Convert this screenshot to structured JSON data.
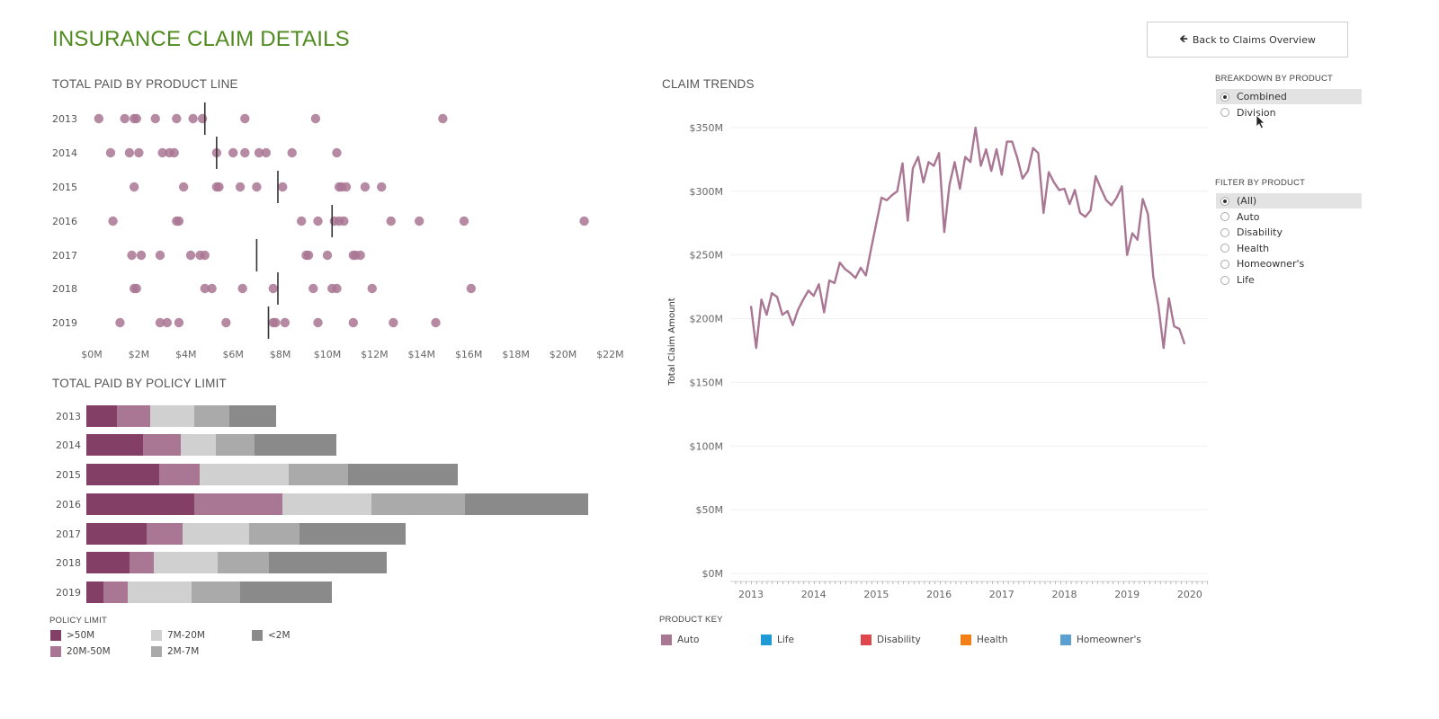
{
  "header": {
    "title": "INSURANCE CLAIM DETAILS",
    "back_button_label": "Back to Claims Overview",
    "back_icon": "arrow-left-icon"
  },
  "sections": {
    "product_line_title": "TOTAL PAID BY PRODUCT LINE",
    "policy_limit_title": "TOTAL PAID BY POLICY LIMIT",
    "claim_trends_title": "CLAIM TRENDS"
  },
  "breakdown": {
    "heading": "BREAKDOWN BY PRODUCT",
    "options": [
      "Combined",
      "Division"
    ],
    "selected": "Combined"
  },
  "filter": {
    "heading": "FILTER BY PRODUCT",
    "options": [
      "(All)",
      "Auto",
      "Disability",
      "Health",
      "Homeowner's",
      "Life"
    ],
    "selected": "(All)"
  },
  "policy_legend": {
    "heading": "POLICY LIMIT",
    "items": [
      {
        "label": ">50M",
        "color": "#843f66"
      },
      {
        "label": "20M-50M",
        "color": "#a97693"
      },
      {
        "label": "7M-20M",
        "color": "#d0d0d0"
      },
      {
        "label": "2M-7M",
        "color": "#aaaaaa"
      },
      {
        "label": "<2M",
        "color": "#8a8a8a"
      }
    ]
  },
  "product_key": {
    "heading": "PRODUCT KEY",
    "items": [
      {
        "label": "Auto",
        "color": "#a97693"
      },
      {
        "label": "Life",
        "color": "#1f9ad6"
      },
      {
        "label": "Disability",
        "color": "#e0474c"
      },
      {
        "label": "Health",
        "color": "#f47f17"
      },
      {
        "label": "Homeowner's",
        "color": "#5aa0d0"
      }
    ]
  },
  "chart_data": [
    {
      "type": "scatter",
      "title": "TOTAL PAID BY PRODUCT LINE",
      "categories": [
        "2013",
        "2014",
        "2015",
        "2016",
        "2017",
        "2018",
        "2019"
      ],
      "x_ticks": [
        "$0M",
        "$2M",
        "$4M",
        "$6M",
        "$8M",
        "$10M",
        "$12M",
        "$14M",
        "$16M",
        "$18M",
        "$20M",
        "$22M"
      ],
      "xlim": [
        0,
        22
      ],
      "color": "#a97693",
      "points_by_year": [
        [
          0.3,
          1.4,
          1.8,
          1.9,
          2.7,
          3.6,
          4.3,
          4.7,
          6.5,
          9.5,
          14.9
        ],
        [
          0.8,
          1.6,
          2.0,
          3.0,
          3.3,
          3.5,
          5.3,
          6.0,
          6.5,
          7.1,
          7.4,
          8.5,
          10.4
        ],
        [
          1.8,
          3.9,
          5.3,
          5.4,
          6.3,
          7.0,
          8.1,
          10.5,
          10.6,
          10.8,
          11.6,
          12.3
        ],
        [
          0.9,
          3.6,
          3.7,
          8.9,
          9.6,
          10.3,
          10.5,
          10.7,
          12.7,
          13.9,
          15.8,
          20.9
        ],
        [
          1.7,
          2.1,
          2.9,
          4.2,
          4.6,
          4.8,
          9.1,
          9.2,
          10.0,
          11.1,
          11.2,
          11.4
        ],
        [
          1.8,
          1.9,
          4.8,
          5.1,
          6.4,
          7.7,
          9.4,
          10.2,
          10.4,
          11.9,
          16.1
        ],
        [
          1.2,
          2.9,
          3.2,
          3.7,
          5.7,
          7.7,
          7.8,
          8.2,
          9.6,
          11.1,
          12.8,
          14.6
        ]
      ],
      "median_by_year": [
        4.8,
        5.3,
        7.9,
        10.2,
        7.0,
        7.9,
        7.5
      ]
    },
    {
      "type": "bar",
      "stacked": true,
      "orientation": "horizontal",
      "title": "TOTAL PAID BY POLICY LIMIT",
      "categories": [
        "2013",
        "2014",
        "2015",
        "2016",
        "2017",
        "2018",
        "2019"
      ],
      "series": [
        {
          "name": ">50M",
          "values": [
            34,
            63,
            81,
            120,
            67,
            48,
            19
          ]
        },
        {
          "name": "20M-50M",
          "values": [
            37,
            42,
            45,
            98,
            40,
            27,
            27
          ]
        },
        {
          "name": "7M-20M",
          "values": [
            49,
            39,
            99,
            99,
            74,
            71,
            71
          ]
        },
        {
          "name": "2M-7M",
          "values": [
            39,
            43,
            66,
            104,
            56,
            57,
            54
          ]
        },
        {
          "name": "<2M",
          "values": [
            52,
            91,
            122,
            137,
            118,
            131,
            102
          ]
        }
      ],
      "xlim": [
        0,
        560
      ]
    },
    {
      "type": "line",
      "title": "CLAIM TRENDS",
      "ylabel": "Total Claim Amount",
      "y_ticks": [
        "$0M",
        "$50M",
        "$100M",
        "$150M",
        "$200M",
        "$250M",
        "$300M",
        "$350M"
      ],
      "ylim": [
        0,
        350
      ],
      "x_ticks": [
        "2013",
        "2014",
        "2015",
        "2016",
        "2017",
        "2018",
        "2019",
        "2020"
      ],
      "xlim": [
        2012.75,
        2020.3
      ],
      "color": "#a97693",
      "x": [
        2013.0,
        2013.083,
        2013.167,
        2013.25,
        2013.333,
        2013.417,
        2013.5,
        2013.583,
        2013.667,
        2013.75,
        2013.833,
        2013.917,
        2014.0,
        2014.083,
        2014.167,
        2014.25,
        2014.333,
        2014.417,
        2014.5,
        2014.583,
        2014.667,
        2014.75,
        2014.833,
        2014.917,
        2015.0,
        2015.083,
        2015.167,
        2015.25,
        2015.333,
        2015.417,
        2015.5,
        2015.583,
        2015.667,
        2015.75,
        2015.833,
        2015.917,
        2016.0,
        2016.083,
        2016.167,
        2016.25,
        2016.333,
        2016.417,
        2016.5,
        2016.583,
        2016.667,
        2016.75,
        2016.833,
        2016.917,
        2017.0,
        2017.083,
        2017.167,
        2017.25,
        2017.333,
        2017.417,
        2017.5,
        2017.583,
        2017.667,
        2017.75,
        2017.833,
        2017.917,
        2018.0,
        2018.083,
        2018.167,
        2018.25,
        2018.333,
        2018.417,
        2018.5,
        2018.583,
        2018.667,
        2018.75,
        2018.833,
        2018.917,
        2019.0,
        2019.083,
        2019.167,
        2019.25,
        2019.333,
        2019.417,
        2019.5,
        2019.583,
        2019.667,
        2019.75,
        2019.833,
        2019.917
      ],
      "values": [
        210,
        177,
        215,
        203,
        220,
        217,
        203,
        206,
        195,
        207,
        215,
        222,
        218,
        227,
        205,
        230,
        228,
        244,
        239,
        236,
        232,
        240,
        234,
        255,
        275,
        295,
        293,
        297,
        300,
        322,
        277,
        318,
        327,
        307,
        323,
        320,
        330,
        268,
        305,
        323,
        302,
        327,
        323,
        350,
        320,
        333,
        316,
        333,
        313,
        339,
        339,
        326,
        310,
        316,
        334,
        330,
        283,
        315,
        307,
        301,
        302,
        290,
        301,
        283,
        280,
        285,
        312,
        302,
        293,
        289,
        295,
        304,
        250,
        267,
        262,
        294,
        282,
        233,
        210,
        177,
        216,
        194,
        192,
        180
      ]
    }
  ]
}
